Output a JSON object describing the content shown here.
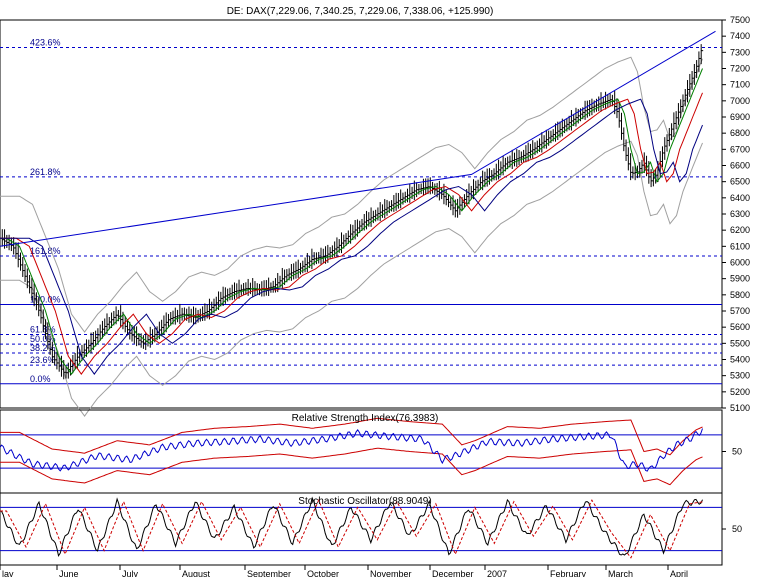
{
  "chart_data": {
    "type": "line",
    "title": "DE: DAX(7,229.06, 7,340.25, 7,229.06, 7,338.06, +125.990)",
    "months": [
      "lay",
      "June",
      "July",
      "August",
      "September",
      "October",
      "November",
      "December",
      "2007",
      "February",
      "March",
      "April"
    ],
    "price_panel": {
      "ylim": [
        5100,
        7500
      ],
      "yticks": [
        5100,
        5200,
        5300,
        5400,
        5500,
        5600,
        5700,
        5800,
        5900,
        6000,
        6100,
        6200,
        6300,
        6400,
        6500,
        6600,
        6700,
        6800,
        6900,
        7000,
        7100,
        7200,
        7300,
        7400,
        7500
      ],
      "fib_levels": [
        {
          "label": "423.6%",
          "value": 7330,
          "style": "dashed"
        },
        {
          "label": "261.8%",
          "value": 6530,
          "style": "dashed"
        },
        {
          "label": "161.8%",
          "value": 6040,
          "style": "dashed"
        },
        {
          "label": "100.0%",
          "value": 5740,
          "style": "solid"
        },
        {
          "label": "61.8%",
          "value": 5555,
          "style": "dashed"
        },
        {
          "label": "50.0%",
          "value": 5495,
          "style": "dashed"
        },
        {
          "label": "38.2%",
          "value": 5440,
          "style": "dashed"
        },
        {
          "label": "23.6%",
          "value": 5365,
          "style": "dashed"
        },
        {
          "label": "0.0%",
          "value": 5250,
          "style": "solid"
        }
      ],
      "close_series": [
        [
          0,
          6150
        ],
        [
          4,
          6100
        ],
        [
          8,
          5900
        ],
        [
          12,
          5700
        ],
        [
          16,
          5420
        ],
        [
          20,
          5310
        ],
        [
          24,
          5420
        ],
        [
          28,
          5500
        ],
        [
          32,
          5600
        ],
        [
          36,
          5680
        ],
        [
          40,
          5560
        ],
        [
          44,
          5500
        ],
        [
          48,
          5560
        ],
        [
          52,
          5650
        ],
        [
          56,
          5680
        ],
        [
          60,
          5660
        ],
        [
          64,
          5700
        ],
        [
          68,
          5780
        ],
        [
          72,
          5820
        ],
        [
          76,
          5840
        ],
        [
          80,
          5830
        ],
        [
          84,
          5850
        ],
        [
          88,
          5920
        ],
        [
          92,
          5960
        ],
        [
          96,
          6020
        ],
        [
          100,
          6040
        ],
        [
          104,
          6100
        ],
        [
          108,
          6180
        ],
        [
          112,
          6250
        ],
        [
          116,
          6300
        ],
        [
          120,
          6350
        ],
        [
          124,
          6400
        ],
        [
          128,
          6450
        ],
        [
          132,
          6470
        ],
        [
          136,
          6420
        ],
        [
          140,
          6320
        ],
        [
          144,
          6420
        ],
        [
          148,
          6500
        ],
        [
          152,
          6550
        ],
        [
          156,
          6620
        ],
        [
          160,
          6650
        ],
        [
          164,
          6700
        ],
        [
          168,
          6760
        ],
        [
          172,
          6820
        ],
        [
          176,
          6880
        ],
        [
          180,
          6940
        ],
        [
          184,
          6980
        ],
        [
          188,
          7010
        ],
        [
          190,
          6920
        ],
        [
          192,
          6700
        ],
        [
          194,
          6550
        ],
        [
          196,
          6560
        ],
        [
          198,
          6620
        ],
        [
          200,
          6500
        ],
        [
          202,
          6550
        ],
        [
          204,
          6700
        ],
        [
          206,
          6800
        ],
        [
          208,
          6900
        ],
        [
          210,
          7000
        ],
        [
          212,
          7100
        ],
        [
          214,
          7200
        ],
        [
          216,
          7338
        ]
      ],
      "upper_channel": {
        "x": [
          0,
          145,
          220
        ],
        "y": [
          6100,
          6545,
          7430
        ]
      },
      "lower_channel": {
        "x": [
          0,
          145,
          220
        ],
        "y": [
          5250,
          5900,
          6100
        ]
      }
    },
    "rsi_panel": {
      "label": "Relative Strength Index(76.3983)",
      "yticks": [
        50
      ],
      "levels": [
        70,
        30
      ],
      "series": [
        [
          0,
          55
        ],
        [
          10,
          35
        ],
        [
          20,
          30
        ],
        [
          30,
          45
        ],
        [
          40,
          40
        ],
        [
          50,
          55
        ],
        [
          60,
          60
        ],
        [
          70,
          62
        ],
        [
          80,
          65
        ],
        [
          90,
          60
        ],
        [
          100,
          65
        ],
        [
          110,
          72
        ],
        [
          120,
          68
        ],
        [
          130,
          65
        ],
        [
          136,
          40
        ],
        [
          140,
          45
        ],
        [
          150,
          62
        ],
        [
          160,
          60
        ],
        [
          170,
          65
        ],
        [
          180,
          68
        ],
        [
          188,
          70
        ],
        [
          192,
          32
        ],
        [
          196,
          35
        ],
        [
          200,
          28
        ],
        [
          204,
          45
        ],
        [
          208,
          58
        ],
        [
          212,
          65
        ],
        [
          216,
          76
        ]
      ]
    },
    "stoch_panel": {
      "label": "Stochastic Oscillator(88.9049)",
      "yticks": [
        50
      ],
      "levels": [
        80,
        20
      ],
      "series": [
        [
          0,
          75
        ],
        [
          6,
          25
        ],
        [
          12,
          85
        ],
        [
          18,
          15
        ],
        [
          24,
          80
        ],
        [
          30,
          20
        ],
        [
          36,
          88
        ],
        [
          42,
          20
        ],
        [
          48,
          85
        ],
        [
          54,
          30
        ],
        [
          60,
          88
        ],
        [
          66,
          35
        ],
        [
          72,
          80
        ],
        [
          78,
          25
        ],
        [
          84,
          85
        ],
        [
          90,
          30
        ],
        [
          96,
          90
        ],
        [
          102,
          25
        ],
        [
          108,
          80
        ],
        [
          114,
          35
        ],
        [
          120,
          88
        ],
        [
          126,
          40
        ],
        [
          132,
          85
        ],
        [
          138,
          15
        ],
        [
          144,
          80
        ],
        [
          150,
          30
        ],
        [
          156,
          88
        ],
        [
          162,
          40
        ],
        [
          168,
          82
        ],
        [
          174,
          35
        ],
        [
          180,
          90
        ],
        [
          186,
          45
        ],
        [
          192,
          10
        ],
        [
          198,
          70
        ],
        [
          204,
          20
        ],
        [
          210,
          85
        ],
        [
          216,
          89
        ]
      ]
    }
  }
}
